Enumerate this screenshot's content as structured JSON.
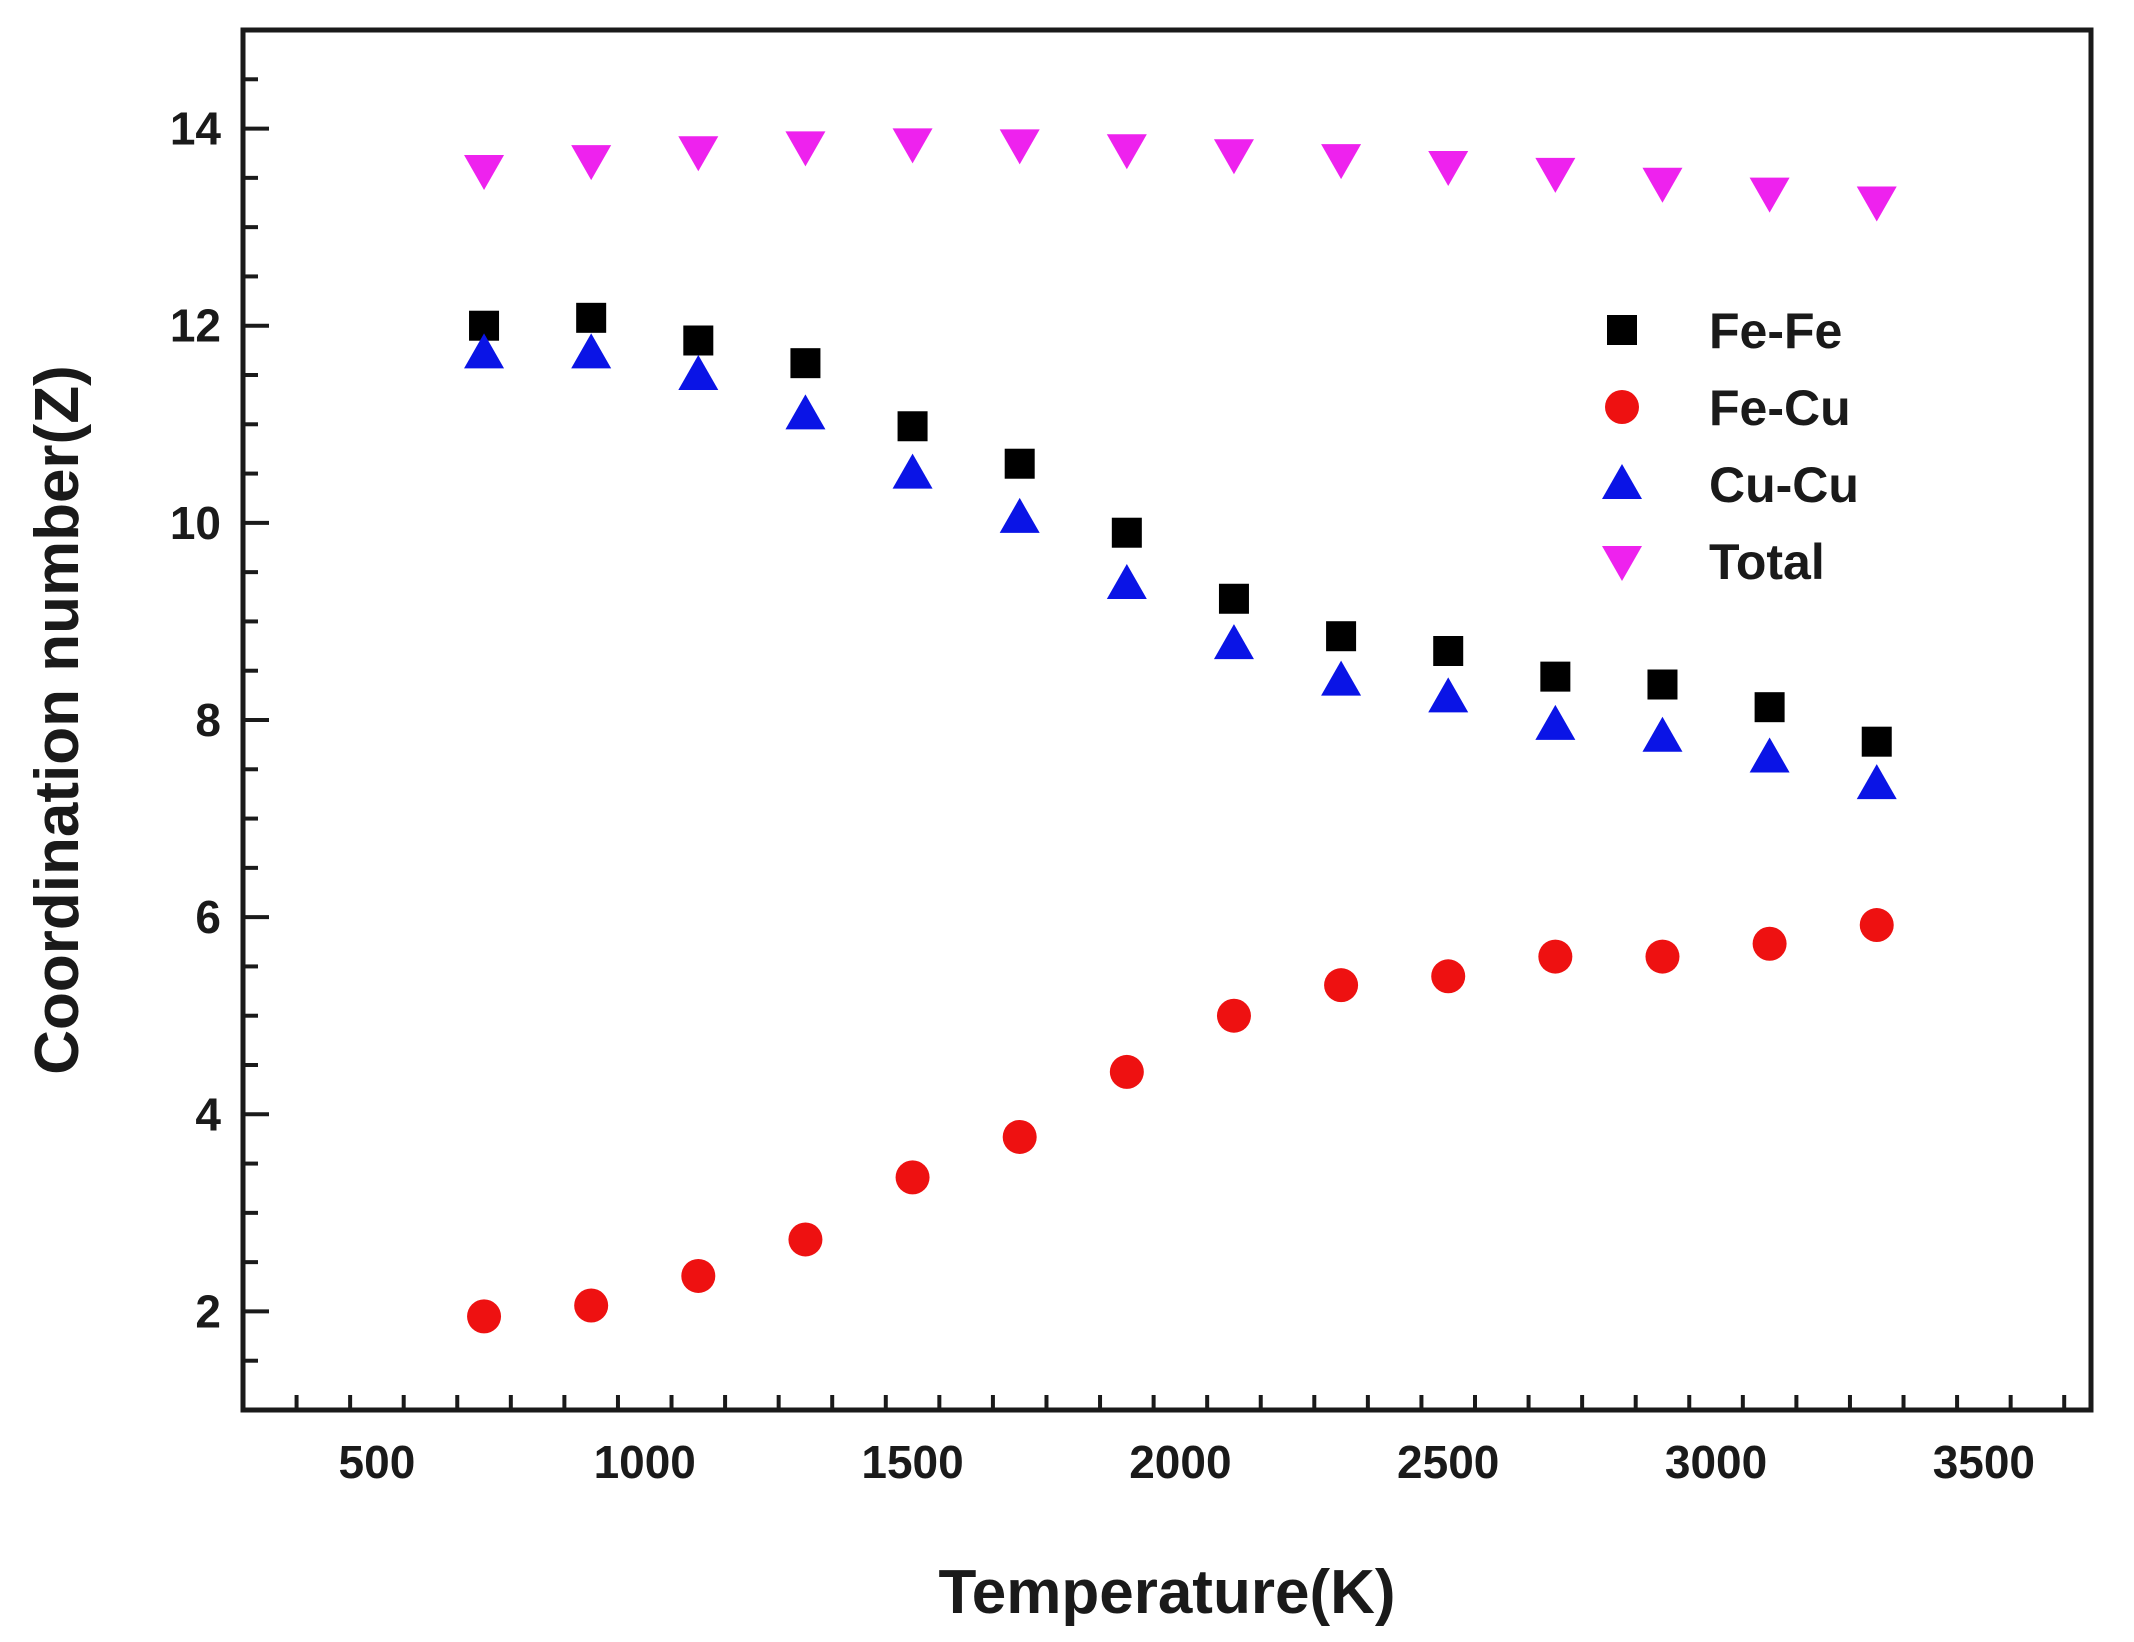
{
  "chart_data": {
    "type": "scatter",
    "title": "",
    "xlabel": "Temperature(K)",
    "ylabel": "Coordination number(Z)",
    "xlim": [
      250,
      3700
    ],
    "ylim": [
      1,
      15
    ],
    "xticks": [
      500,
      1000,
      1500,
      2000,
      2500,
      3000,
      3500
    ],
    "yticks": [
      2,
      4,
      6,
      8,
      10,
      12,
      14
    ],
    "grid": false,
    "legend_position": "right",
    "x": [
      700,
      900,
      1100,
      1300,
      1500,
      1700,
      1900,
      2100,
      2300,
      2500,
      2700,
      2900,
      3100,
      3300
    ],
    "series": [
      {
        "name": "Fe-Fe",
        "marker": "square",
        "color": "#000000",
        "values": [
          12.0,
          12.08,
          11.85,
          11.62,
          10.98,
          10.6,
          9.9,
          9.23,
          8.85,
          8.7,
          8.44,
          8.36,
          8.13,
          7.78
        ]
      },
      {
        "name": "Fe-Cu",
        "marker": "circle",
        "color": "#ee1111",
        "values": [
          1.95,
          2.06,
          2.36,
          2.73,
          3.36,
          3.77,
          4.43,
          5.0,
          5.31,
          5.4,
          5.6,
          5.6,
          5.73,
          5.92
        ]
      },
      {
        "name": "Cu-Cu",
        "marker": "triangle-up",
        "color": "#0a14e6",
        "values": [
          11.72,
          11.72,
          11.5,
          11.1,
          10.5,
          10.05,
          9.38,
          8.77,
          8.4,
          8.23,
          7.95,
          7.83,
          7.62,
          7.35
        ]
      },
      {
        "name": "Total",
        "marker": "triangle-down",
        "color": "#ee22ee",
        "values": [
          13.58,
          13.68,
          13.77,
          13.82,
          13.85,
          13.84,
          13.79,
          13.74,
          13.69,
          13.62,
          13.55,
          13.45,
          13.35,
          13.26
        ]
      }
    ]
  }
}
